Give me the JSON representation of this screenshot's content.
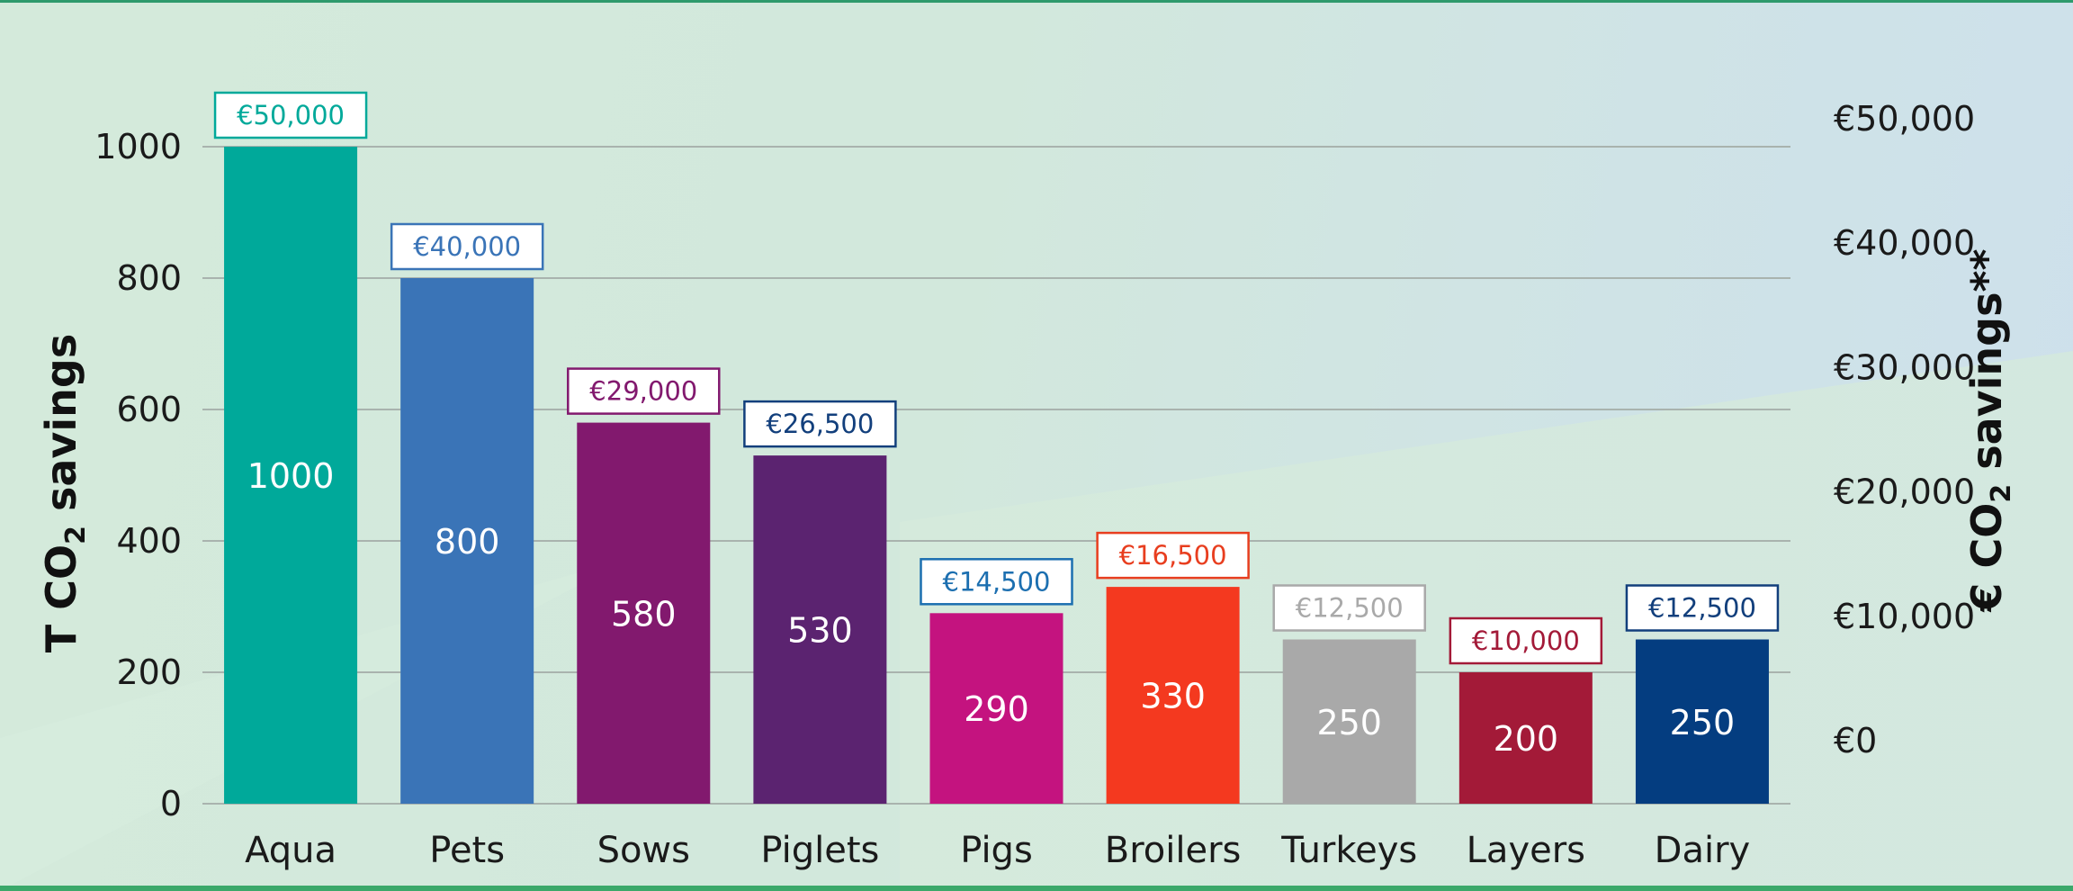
{
  "colors": {
    "background_left": "#d4eadb",
    "background_right": "#cde0ec",
    "grid": "#a9b3ae"
  },
  "chart_data": {
    "type": "bar",
    "categories": [
      "Aqua",
      "Pets",
      "Sows",
      "Piglets",
      "Pigs",
      "Broilers",
      "Turkeys",
      "Layers",
      "Dairy"
    ],
    "values": [
      1000,
      800,
      580,
      530,
      290,
      330,
      250,
      200,
      250
    ],
    "data_labels": [
      "1000",
      "800",
      "580",
      "530",
      "290",
      "330",
      "250",
      "200",
      "250"
    ],
    "euro_savings": [
      50000,
      40000,
      29000,
      26500,
      14500,
      16500,
      12500,
      10000,
      12500
    ],
    "euro_labels": [
      "€50,000",
      "€40,000",
      "€29,000",
      "€26,500",
      "€14,500",
      "€16,500",
      "€12,500",
      "€10,000",
      "€12,500"
    ],
    "bar_colors": [
      "#00a99a",
      "#3a74b7",
      "#82196e",
      "#5b2370",
      "#c4137f",
      "#f4391f",
      "#a9a9a9",
      "#a31a38",
      "#043d80"
    ],
    "badge_colors": [
      "#00a99a",
      "#3a74b7",
      "#82196e",
      "#123f7c",
      "#1c6fb0",
      "#e83e1f",
      "#a9a9a9",
      "#a31a38",
      "#123f7c"
    ],
    "ylabel": {
      "main": "T CO",
      "sub": "2",
      "rest": " savings"
    },
    "y2label": {
      "main": "€ CO",
      "sub": "2",
      "rest": " savings**"
    },
    "ylim": [
      0,
      1000
    ],
    "yticks": [
      0,
      200,
      400,
      600,
      800,
      1000
    ],
    "ytick_labels": [
      "0",
      "200",
      "400",
      "600",
      "800",
      "1000"
    ],
    "y2lim": [
      0,
      50000
    ],
    "y2ticks": [
      0,
      10000,
      20000,
      30000,
      40000,
      50000
    ],
    "y2tick_labels": [
      "€0",
      "€10,000",
      "€20,000",
      "€30,000",
      "€40,000",
      "€50,000"
    ],
    "grid": true,
    "legend": "none"
  }
}
